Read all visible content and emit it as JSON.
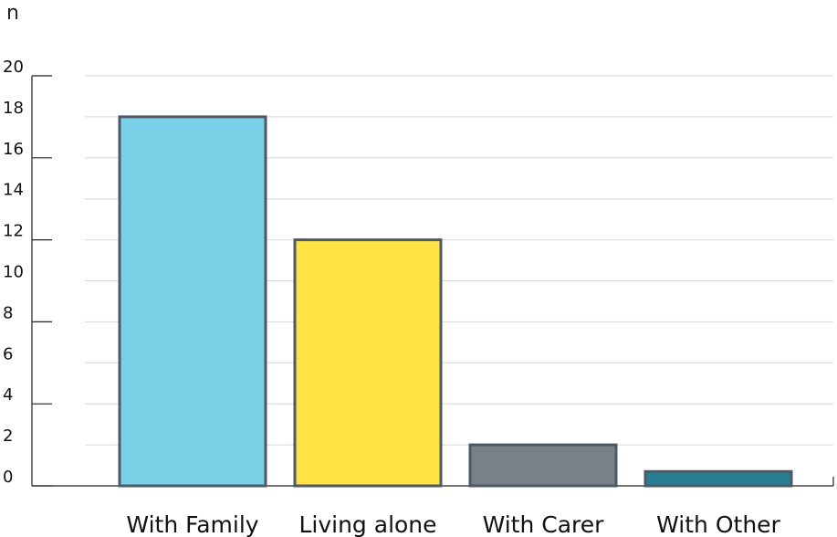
{
  "chart_data": {
    "type": "bar",
    "ylabel": "n",
    "xlabel": "",
    "categories": [
      "With Family",
      "Living alone",
      "With Carer",
      "With Other"
    ],
    "values": [
      18,
      12,
      2,
      0.7
    ],
    "colors": [
      "#78d0e6",
      "#ffe345",
      "#7a8088",
      "#267d94"
    ],
    "bar_outline": "#4d5a66",
    "ylim": [
      0,
      20
    ],
    "yticks": [
      "0",
      "2",
      "4",
      "6",
      "8",
      "10",
      "12",
      "14",
      "16",
      "18",
      "20"
    ],
    "grid": true,
    "legend": "none"
  }
}
